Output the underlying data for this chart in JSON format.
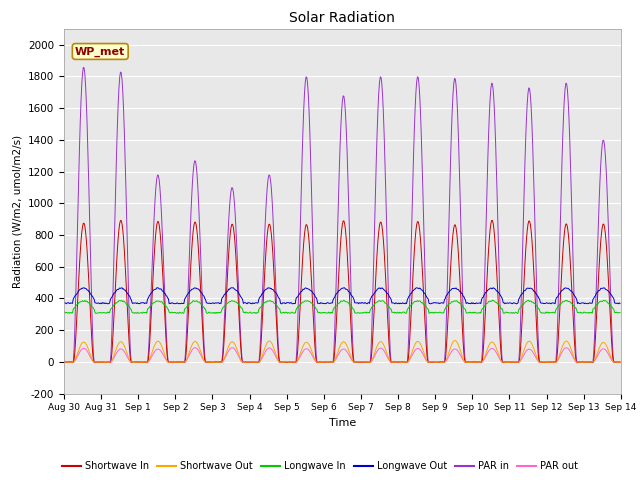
{
  "title": "Solar Radiation",
  "xlabel": "Time",
  "ylabel": "Radiation (W/m2, umol/m2/s)",
  "ylim": [
    -200,
    2100
  ],
  "yticks": [
    -200,
    0,
    200,
    400,
    600,
    800,
    1000,
    1200,
    1400,
    1600,
    1800,
    2000
  ],
  "num_days": 15,
  "annotation_label": "WP_met",
  "bg_color": "#ffffff",
  "plot_bg_color": "#e8e8e8",
  "series": {
    "shortwave_in": {
      "color": "#cc0000",
      "label": "Shortwave In"
    },
    "shortwave_out": {
      "color": "#ffa500",
      "label": "Shortwave Out"
    },
    "longwave_in": {
      "color": "#00cc00",
      "label": "Longwave In"
    },
    "longwave_out": {
      "color": "#0000cc",
      "label": "Longwave Out"
    },
    "par_in": {
      "color": "#9933cc",
      "label": "PAR in",
      "peaks": [
        1860,
        1830,
        1180,
        1270,
        1100,
        1180,
        1800,
        1680,
        1800,
        1800,
        1790,
        1760,
        1730,
        1760,
        1400
      ]
    },
    "par_out": {
      "color": "#ff66cc",
      "label": "PAR out"
    }
  },
  "xtick_labels": [
    "Aug 30",
    "Aug 31",
    "Sep 1",
    "Sep 2",
    "Sep 3",
    "Sep 4",
    "Sep 5",
    "Sep 6",
    "Sep 7",
    "Sep 8",
    "Sep 9",
    "Sep 10",
    "Sep 11",
    "Sep 12",
    "Sep 13",
    "Sep 14"
  ],
  "sw_in_peak": 880,
  "sw_out_peak": 130,
  "lw_in_base": 330,
  "lw_in_amp": 55,
  "lw_out_base": 395,
  "lw_out_amp": 70,
  "par_out_peak": 85
}
